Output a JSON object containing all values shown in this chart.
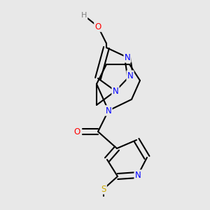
{
  "background_color": "#e8e8e8",
  "atom_colors": {
    "N": "#0000ff",
    "O": "#ff0000",
    "S": "#ccaa00",
    "H": "#808080"
  },
  "bond_color": "#000000",
  "bond_width": 1.5,
  "dbo": 0.06,
  "figsize": [
    3.0,
    3.0
  ],
  "dpi": 100
}
